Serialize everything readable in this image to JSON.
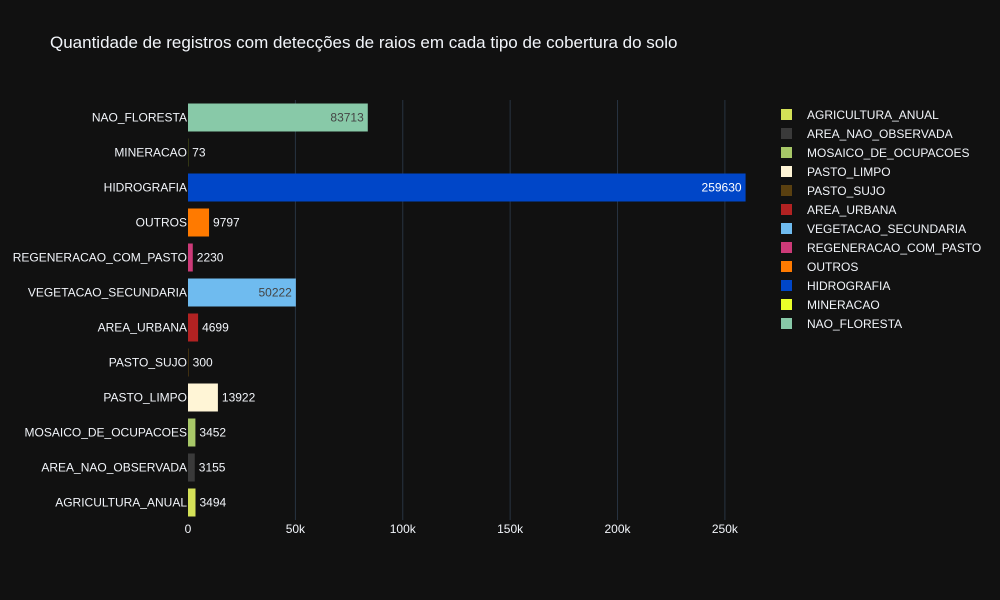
{
  "chart_data": {
    "type": "bar",
    "orientation": "horizontal",
    "title": "Quantidade de registros com detecções de raios em cada tipo de cobertura do solo",
    "xlabel": "",
    "ylabel": "",
    "xlim": [
      0,
      271000
    ],
    "grid": true,
    "legend_position": "right",
    "xticks": [
      {
        "value": 0,
        "label": "0"
      },
      {
        "value": 50000,
        "label": "50k"
      },
      {
        "value": 100000,
        "label": "100k"
      },
      {
        "value": 150000,
        "label": "150k"
      },
      {
        "value": 200000,
        "label": "200k"
      },
      {
        "value": 250000,
        "label": "250k"
      }
    ],
    "series": [
      {
        "name": "AGRICULTURA_ANUAL",
        "category": "AGRICULTURA_ANUAL",
        "value": 3494,
        "label": "3494",
        "color": "#d4e157"
      },
      {
        "name": "AREA_NAO_OBSERVADA",
        "category": "AREA_NAO_OBSERVADA",
        "value": 3155,
        "label": "3155",
        "color": "#3a3a3a"
      },
      {
        "name": "MOSAICO_DE_OCUPACOES",
        "category": "MOSAICO_DE_OCUPACOES",
        "value": 3452,
        "label": "3452",
        "color": "#a8c868"
      },
      {
        "name": "PASTO_LIMPO",
        "category": "PASTO_LIMPO",
        "value": 13922,
        "label": "13922",
        "color": "#fff5d6"
      },
      {
        "name": "PASTO_SUJO",
        "category": "PASTO_SUJO",
        "value": 300,
        "label": "300",
        "color": "#5a4010"
      },
      {
        "name": "AREA_URBANA",
        "category": "AREA_URBANA",
        "value": 4699,
        "label": "4699",
        "color": "#b22222"
      },
      {
        "name": "VEGETACAO_SECUNDARIA",
        "category": "VEGETACAO_SECUNDARIA",
        "value": 50222,
        "label": "50222",
        "color": "#6fbbef"
      },
      {
        "name": "REGENERACAO_COM_PASTO",
        "category": "REGENERACAO_COM_PASTO",
        "value": 2230,
        "label": "2230",
        "color": "#cc3a78"
      },
      {
        "name": "OUTROS",
        "category": "OUTROS",
        "value": 9797,
        "label": "9797",
        "color": "#ff7a00"
      },
      {
        "name": "HIDROGRAFIA",
        "category": "HIDROGRAFIA",
        "value": 259630,
        "label": "259630",
        "color": "#0046c8"
      },
      {
        "name": "MINERACAO",
        "category": "MINERACAO",
        "value": 73,
        "label": "73",
        "color": "#eaff2a"
      },
      {
        "name": "NAO_FLORESTA",
        "category": "NAO_FLORESTA",
        "value": 83713,
        "label": "83713",
        "color": "#88c9a8"
      }
    ]
  }
}
